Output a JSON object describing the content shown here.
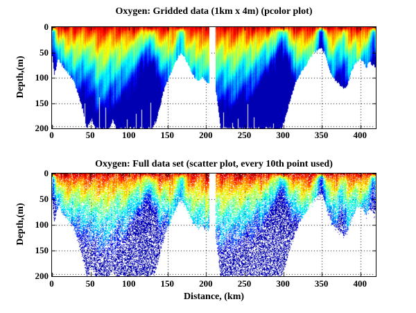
{
  "figure": {
    "background": "#ffffff",
    "text_color": "#000000",
    "axis_color": "#000000",
    "grid_style": "dotted"
  },
  "chart_data": [
    {
      "type": "heatmap",
      "render": "pcolor",
      "title": "Oxygen: Gridded data (1km x 4m) (pcolor plot)",
      "xlabel": "",
      "ylabel": "Depth,(m)",
      "x_ticks": [
        0,
        50,
        100,
        150,
        200,
        250,
        300,
        350,
        400
      ],
      "y_ticks": [
        0,
        50,
        100,
        150,
        200
      ],
      "xlim": [
        0,
        420
      ],
      "ylim": [
        0,
        200
      ],
      "y_inverted": true,
      "grid": true,
      "colormap": "jet",
      "colormap_stops": [
        "#00008f",
        "#0000ff",
        "#00ffff",
        "#ffff00",
        "#ff0000",
        "#800000"
      ],
      "units": {
        "x": "km",
        "y": "m"
      },
      "no_data_gap_km": [
        204.5,
        212
      ],
      "seafloor_depth_m": [
        [
          0,
          50
        ],
        [
          3,
          95
        ],
        [
          8,
          62
        ],
        [
          15,
          80
        ],
        [
          22,
          92
        ],
        [
          28,
          105
        ],
        [
          34,
          132
        ],
        [
          40,
          163
        ],
        [
          45,
          200
        ],
        [
          52,
          182
        ],
        [
          56,
          200
        ],
        [
          75,
          200
        ],
        [
          79,
          184
        ],
        [
          84,
          200
        ],
        [
          128,
          200
        ],
        [
          134,
          193
        ],
        [
          140,
          158
        ],
        [
          146,
          120
        ],
        [
          152,
          100
        ],
        [
          158,
          78
        ],
        [
          164,
          58
        ],
        [
          168,
          52
        ],
        [
          172,
          60
        ],
        [
          177,
          75
        ],
        [
          183,
          95
        ],
        [
          189,
          105
        ],
        [
          195,
          100
        ],
        [
          201,
          108
        ],
        [
          204,
          112
        ],
        [
          212,
          118
        ],
        [
          215,
          152
        ],
        [
          219,
          200
        ],
        [
          298,
          200
        ],
        [
          303,
          178
        ],
        [
          309,
          145
        ],
        [
          315,
          115
        ],
        [
          321,
          95
        ],
        [
          327,
          80
        ],
        [
          333,
          65
        ],
        [
          339,
          52
        ],
        [
          345,
          44
        ],
        [
          350,
          40
        ],
        [
          354,
          55
        ],
        [
          358,
          75
        ],
        [
          363,
          95
        ],
        [
          368,
          105
        ],
        [
          374,
          115
        ],
        [
          379,
          122
        ],
        [
          384,
          112
        ],
        [
          388,
          90
        ],
        [
          392,
          75
        ],
        [
          396,
          68
        ],
        [
          400,
          62
        ],
        [
          404,
          70
        ],
        [
          408,
          80
        ],
        [
          412,
          68
        ],
        [
          416,
          75
        ],
        [
          420,
          80
        ]
      ],
      "oxycline_scale": [
        [
          0,
          0.5
        ],
        [
          15,
          0.8
        ],
        [
          30,
          1.0
        ],
        [
          45,
          0.95
        ],
        [
          60,
          1.25
        ],
        [
          75,
          1.2
        ],
        [
          90,
          1.05
        ],
        [
          105,
          0.85
        ],
        [
          115,
          0.6
        ],
        [
          125,
          0.5
        ],
        [
          135,
          0.6
        ],
        [
          145,
          0.9
        ],
        [
          155,
          1.0
        ],
        [
          165,
          0.75
        ],
        [
          175,
          0.95
        ],
        [
          185,
          1.1
        ],
        [
          195,
          1.15
        ],
        [
          205,
          1.1
        ],
        [
          212,
          1.15
        ],
        [
          222,
          1.25
        ],
        [
          235,
          1.1
        ],
        [
          250,
          1.0
        ],
        [
          262,
          0.9
        ],
        [
          272,
          0.8
        ],
        [
          282,
          0.65
        ],
        [
          292,
          0.5
        ],
        [
          298,
          0.42
        ],
        [
          306,
          0.55
        ],
        [
          315,
          0.8
        ],
        [
          325,
          1.0
        ],
        [
          335,
          0.9
        ],
        [
          342,
          0.6
        ],
        [
          348,
          0.45
        ],
        [
          356,
          0.7
        ],
        [
          365,
          0.85
        ],
        [
          375,
          0.75
        ],
        [
          385,
          0.95
        ],
        [
          395,
          0.85
        ],
        [
          405,
          0.75
        ],
        [
          412,
          0.6
        ],
        [
          420,
          0.5
        ]
      ],
      "low_oxygen_plumes": [
        {
          "km": 2,
          "width_km": 3,
          "strength": 0.55
        },
        {
          "km": 125,
          "width_km": 9,
          "strength": 0.25
        },
        {
          "km": 166,
          "width_km": 6,
          "strength": 0.5
        },
        {
          "km": 297,
          "width_km": 7,
          "strength": 0.45
        },
        {
          "km": 350,
          "width_km": 5,
          "strength": 0.8
        },
        {
          "km": 378,
          "width_km": 6,
          "strength": 0.25
        },
        {
          "km": 417,
          "width_km": 6,
          "strength": 0.45
        }
      ],
      "missing_data_columns_km": [
        [
          42,
          150
        ],
        [
          61,
          138
        ],
        [
          69,
          158
        ],
        [
          97,
          182
        ],
        [
          109,
          170
        ],
        [
          116,
          163
        ],
        [
          128,
          148
        ],
        [
          133,
          186
        ],
        [
          222,
          168
        ],
        [
          234,
          188
        ],
        [
          241,
          180
        ],
        [
          254,
          152
        ],
        [
          262,
          178
        ],
        [
          287,
          190
        ]
      ],
      "seed": 3
    },
    {
      "type": "scatter",
      "render": "scatter",
      "title": "Oxygen: Full data set (scatter plot, every 10th point used)",
      "xlabel": "Distance, (km)",
      "ylabel": "Depth,(m)",
      "x_ticks": [
        0,
        50,
        100,
        150,
        200,
        250,
        300,
        350,
        400
      ],
      "y_ticks": [
        0,
        50,
        100,
        150,
        200
      ],
      "xlim": [
        0,
        420
      ],
      "ylim": [
        0,
        200
      ],
      "y_inverted": true,
      "grid": true,
      "colormap": "jet",
      "units": {
        "x": "km",
        "y": "m"
      },
      "subsample": "every 10th point",
      "dot_size_px": 1,
      "point_density_surface": 0.9,
      "point_density_deep": 0.5,
      "uses_same_transect_data_as": "chart_data.0",
      "seed": 9
    }
  ]
}
